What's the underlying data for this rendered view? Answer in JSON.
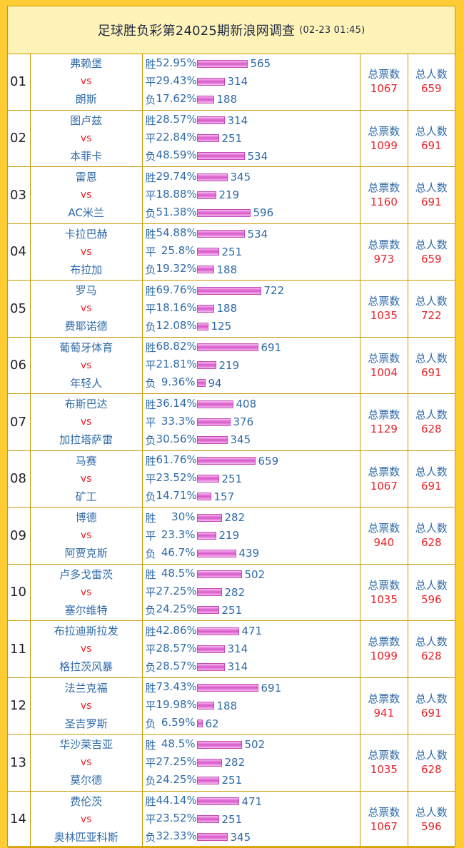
{
  "header": {
    "title": "足球胜负彩第24025期新浪网调查",
    "date": "(02-23 01:45)"
  },
  "labels": {
    "vs": "vs",
    "win": "胜",
    "draw": "平",
    "lose": "负",
    "total_votes": "总票数",
    "total_people": "总人数"
  },
  "matches": [
    {
      "no": "01",
      "home": "弗赖堡",
      "away": "朗斯",
      "win_pct": "52.95%",
      "win": 565,
      "draw_pct": "29.43%",
      "draw": 314,
      "lose_pct": "17.62%",
      "lose": 188,
      "total_votes": "1067",
      "total_people": "659"
    },
    {
      "no": "02",
      "home": "图卢兹",
      "away": "本菲卡",
      "win_pct": "28.57%",
      "win": 314,
      "draw_pct": "22.84%",
      "draw": 251,
      "lose_pct": "48.59%",
      "lose": 534,
      "total_votes": "1099",
      "total_people": "691"
    },
    {
      "no": "03",
      "home": "雷恩",
      "away": "AC米兰",
      "win_pct": "29.74%",
      "win": 345,
      "draw_pct": "18.88%",
      "draw": 219,
      "lose_pct": "51.38%",
      "lose": 596,
      "total_votes": "1160",
      "total_people": "691"
    },
    {
      "no": "04",
      "home": "卡拉巴赫",
      "away": "布拉加",
      "win_pct": "54.88%",
      "win": 534,
      "draw_pct": "25.8%",
      "draw": 251,
      "lose_pct": "19.32%",
      "lose": 188,
      "total_votes": "973",
      "total_people": "659"
    },
    {
      "no": "05",
      "home": "罗马",
      "away": "费耶诺德",
      "win_pct": "69.76%",
      "win": 722,
      "draw_pct": "18.16%",
      "draw": 188,
      "lose_pct": "12.08%",
      "lose": 125,
      "total_votes": "1035",
      "total_people": "722"
    },
    {
      "no": "06",
      "home": "葡萄牙体育",
      "away": "年轻人",
      "win_pct": "68.82%",
      "win": 691,
      "draw_pct": "21.81%",
      "draw": 219,
      "lose_pct": "9.36%",
      "lose": 94,
      "total_votes": "1004",
      "total_people": "691"
    },
    {
      "no": "07",
      "home": "布斯巴达",
      "away": "加拉塔萨雷",
      "win_pct": "36.14%",
      "win": 408,
      "draw_pct": "33.3%",
      "draw": 376,
      "lose_pct": "30.56%",
      "lose": 345,
      "total_votes": "1129",
      "total_people": "628"
    },
    {
      "no": "08",
      "home": "马赛",
      "away": "矿工",
      "win_pct": "61.76%",
      "win": 659,
      "draw_pct": "23.52%",
      "draw": 251,
      "lose_pct": "14.71%",
      "lose": 157,
      "total_votes": "1067",
      "total_people": "691"
    },
    {
      "no": "09",
      "home": "博德",
      "away": "阿贾克斯",
      "win_pct": "30%",
      "win": 282,
      "draw_pct": "23.3%",
      "draw": 219,
      "lose_pct": "46.7%",
      "lose": 439,
      "total_votes": "940",
      "total_people": "628"
    },
    {
      "no": "10",
      "home": "卢多戈雷茨",
      "away": "塞尔维特",
      "win_pct": "48.5%",
      "win": 502,
      "draw_pct": "27.25%",
      "draw": 282,
      "lose_pct": "24.25%",
      "lose": 251,
      "total_votes": "1035",
      "total_people": "596"
    },
    {
      "no": "11",
      "home": "布拉迪斯拉发",
      "away": "格拉茨风暴",
      "win_pct": "42.86%",
      "win": 471,
      "draw_pct": "28.57%",
      "draw": 314,
      "lose_pct": "28.57%",
      "lose": 314,
      "total_votes": "1099",
      "total_people": "628"
    },
    {
      "no": "12",
      "home": "法兰克福",
      "away": "圣吉罗斯",
      "win_pct": "73.43%",
      "win": 691,
      "draw_pct": "19.98%",
      "draw": 188,
      "lose_pct": "6.59%",
      "lose": 62,
      "total_votes": "941",
      "total_people": "691"
    },
    {
      "no": "13",
      "home": "华沙莱吉亚",
      "away": "莫尔德",
      "win_pct": "48.5%",
      "win": 502,
      "draw_pct": "27.25%",
      "draw": 282,
      "lose_pct": "24.25%",
      "lose": 251,
      "total_votes": "1035",
      "total_people": "628"
    },
    {
      "no": "14",
      "home": "费伦茨",
      "away": "奥林匹亚科斯",
      "win_pct": "44.14%",
      "win": 471,
      "draw_pct": "23.52%",
      "draw": 251,
      "lose_pct": "32.33%",
      "lose": 345,
      "total_votes": "1067",
      "total_people": "596"
    }
  ]
}
